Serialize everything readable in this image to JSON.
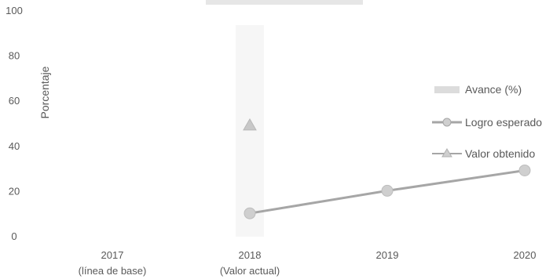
{
  "chart_data": {
    "type": "line",
    "categories": [
      [
        "2017",
        "(línea de base)"
      ],
      [
        "2018",
        "(Valor actual)"
      ],
      [
        "2019",
        ""
      ],
      [
        "2020",
        ""
      ]
    ],
    "ylabel": "Porcentaje",
    "ylim": [
      0,
      100
    ],
    "yticks": [
      0,
      20,
      40,
      60,
      80,
      100
    ],
    "grid": false,
    "legend_position": "right",
    "series": [
      {
        "name": "Avance (%)",
        "kind": "bar",
        "values": [
          null,
          null,
          null,
          null
        ],
        "color": "#dcdcdc"
      },
      {
        "name": "Logro esperado",
        "kind": "line-circle",
        "values": [
          null,
          10,
          20,
          29
        ],
        "color": "#a6a6a6"
      },
      {
        "name": "Valor obtenido",
        "kind": "triangle",
        "values": [
          null,
          49,
          null,
          null
        ],
        "color": "#c8c8c8"
      }
    ]
  }
}
